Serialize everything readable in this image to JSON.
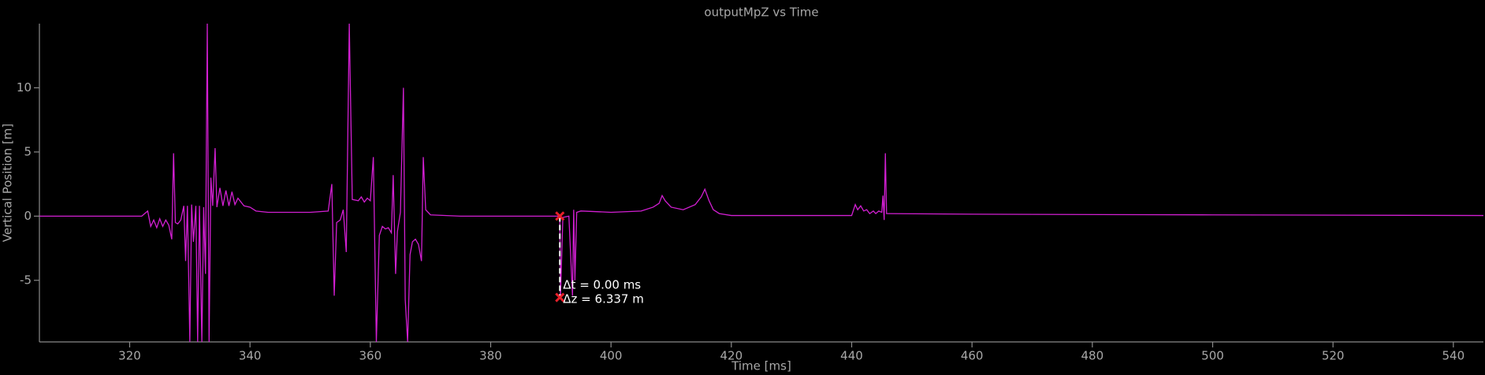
{
  "chart_data": {
    "type": "line",
    "title": "outputMpZ vs Time",
    "xlabel": "Time [ms]",
    "ylabel": "Vertical Position [m]",
    "color": "#d21fd2",
    "x": [
      305,
      322,
      323,
      323.5,
      324,
      324.5,
      325,
      325.5,
      326,
      326.5,
      327,
      327.3,
      327.6,
      328,
      328.5,
      329,
      329.3,
      329.6,
      330,
      330.3,
      330.6,
      331,
      331.3,
      331.6,
      332,
      332.3,
      332.6,
      332.9,
      333.2,
      333.5,
      333.8,
      334.2,
      334.5,
      335,
      335.5,
      336,
      336.5,
      337,
      337.5,
      338,
      339,
      340,
      341,
      343,
      350,
      353,
      353.6,
      354,
      354.4,
      355,
      355.5,
      356,
      356.5,
      357,
      358,
      358.5,
      359,
      359.5,
      360,
      360.5,
      361,
      361.5,
      362,
      362.5,
      363,
      363.5,
      363.8,
      364.2,
      364.5,
      365,
      365.5,
      365.8,
      366.2,
      366.6,
      367,
      367.5,
      368,
      368.5,
      368.8,
      369.2,
      370,
      375,
      391,
      391.5,
      391.6,
      392,
      393,
      393.6,
      393.8,
      394,
      394.3,
      395,
      400,
      405,
      407,
      408,
      408.5,
      409,
      410,
      412,
      414,
      415,
      415.6,
      416.3,
      417,
      418,
      420,
      430,
      440,
      440.6,
      441,
      441.5,
      442,
      442.5,
      443,
      443.6,
      444,
      444.5,
      445,
      445.2,
      445.4,
      445.6,
      445.8,
      446,
      460,
      500,
      545
    ],
    "values": [
      0,
      0,
      0.4,
      -0.8,
      -0.3,
      -0.9,
      -0.2,
      -0.8,
      -0.3,
      -0.7,
      -1.8,
      4.9,
      -0.5,
      -0.6,
      -0.3,
      0.8,
      -3.5,
      0.8,
      -9.8,
      0.9,
      -2,
      0.8,
      -9.8,
      0.8,
      -9.8,
      0.7,
      -4.5,
      15,
      -9.8,
      3,
      0.8,
      5.3,
      0.7,
      2.2,
      0.8,
      2.0,
      0.8,
      1.9,
      0.9,
      1.4,
      0.8,
      0.7,
      0.4,
      0.3,
      0.3,
      0.4,
      2.5,
      -6.2,
      -0.5,
      -0.3,
      0.5,
      -2.8,
      15,
      1.3,
      1.2,
      1.5,
      1.1,
      1.4,
      1.2,
      4.6,
      -9.8,
      -1.5,
      -0.8,
      -1.0,
      -0.9,
      -1.3,
      3.2,
      -4.5,
      -1.2,
      0.3,
      10,
      -6.5,
      -9.8,
      -3,
      -2,
      -1.8,
      -2.2,
      -3.5,
      4.6,
      0.5,
      0.1,
      0,
      0,
      0,
      -6.3,
      -0.1,
      0,
      -6.2,
      0.5,
      -5,
      0.3,
      0.4,
      0.3,
      0.4,
      0.7,
      1.0,
      1.6,
      1.2,
      0.7,
      0.5,
      0.9,
      1.5,
      2.1,
      1.2,
      0.5,
      0.2,
      0.05,
      0.05,
      0.05,
      0.9,
      0.5,
      0.8,
      0.4,
      0.5,
      0.2,
      0.4,
      0.2,
      0.4,
      0.3,
      1.6,
      -0.3,
      4.9,
      0.2,
      0.2,
      0.15,
      0.1,
      0.05
    ],
    "xlim": [
      305,
      545
    ],
    "ylim": [
      -9.8,
      15
    ],
    "xticks": [
      320,
      340,
      360,
      380,
      400,
      420,
      440,
      460,
      480,
      500,
      520,
      540
    ],
    "yticks": [
      -5,
      0,
      5,
      10
    ],
    "measure": {
      "x": 391.5,
      "y": [
        0,
        -6.337
      ],
      "color": "#e8202a"
    },
    "annotations": [
      "Δt = 0.00 ms",
      "Δz = 6.337 m"
    ]
  }
}
